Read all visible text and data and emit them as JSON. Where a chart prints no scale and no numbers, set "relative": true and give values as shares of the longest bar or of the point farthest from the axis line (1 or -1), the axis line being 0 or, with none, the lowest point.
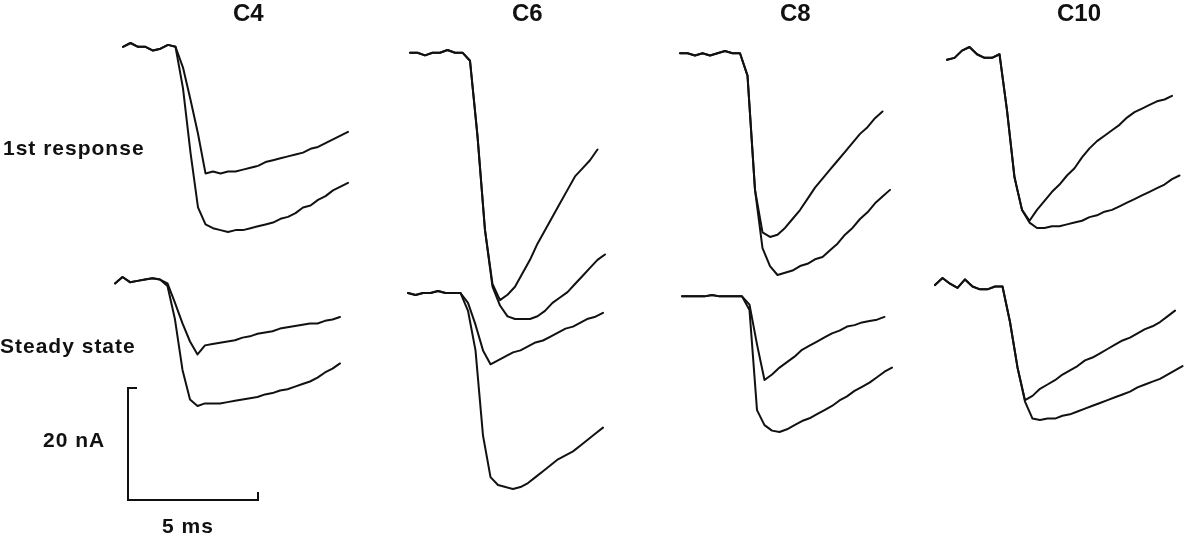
{
  "chart_data": [
    {
      "type": "line",
      "title": "C4",
      "ylabel": "1st response",
      "relative": true,
      "tick_labels": false,
      "categories": [
        null,
        null,
        null,
        null,
        null,
        null,
        null,
        null,
        null,
        null,
        null,
        null,
        null,
        null,
        null,
        null,
        null,
        null,
        null,
        null,
        null,
        null,
        null,
        null,
        null,
        null,
        null,
        null,
        null,
        null,
        null
      ],
      "series": [
        {
          "color": "#111111",
          "values": [
            0.98,
            1.0,
            0.98,
            0.98,
            0.96,
            0.97,
            0.99,
            0.98,
            0.87,
            0.7,
            0.52,
            0.31,
            0.32,
            0.31,
            0.32,
            0.32,
            0.33,
            0.34,
            0.35,
            0.37,
            0.38,
            0.39,
            0.4,
            0.41,
            0.42,
            0.44,
            0.45,
            0.47,
            0.49,
            0.51,
            0.53
          ]
        },
        {
          "color": "#111111",
          "values": [
            0.98,
            1.0,
            0.98,
            0.98,
            0.96,
            0.97,
            0.99,
            0.98,
            0.76,
            0.42,
            0.13,
            0.04,
            0.02,
            0.01,
            0.0,
            0.01,
            0.01,
            0.02,
            0.03,
            0.04,
            0.05,
            0.07,
            0.08,
            0.1,
            0.13,
            0.14,
            0.17,
            0.19,
            0.22,
            0.24,
            0.26
          ]
        }
      ]
    },
    {
      "type": "line",
      "title": "C6",
      "relative": true,
      "tick_labels": false,
      "categories": [
        null,
        null,
        null,
        null,
        null,
        null,
        null,
        null,
        null,
        null,
        null,
        null,
        null,
        null,
        null,
        null,
        null,
        null,
        null,
        null,
        null,
        null,
        null,
        null,
        null,
        null,
        null
      ],
      "series": [
        {
          "color": "#111111",
          "values": [
            0.99,
            0.99,
            0.98,
            0.99,
            0.99,
            1.0,
            0.99,
            0.99,
            0.96,
            0.68,
            0.33,
            0.13,
            0.07,
            0.09,
            0.12,
            0.17,
            0.22,
            0.28,
            0.33,
            0.38,
            0.43,
            0.48,
            0.53,
            0.56,
            0.59,
            0.63,
            null
          ]
        },
        {
          "color": "#111111",
          "values": [
            0.99,
            0.99,
            0.98,
            0.99,
            0.99,
            1.0,
            0.99,
            0.99,
            0.96,
            0.68,
            0.33,
            0.12,
            0.05,
            0.01,
            0.0,
            0.0,
            0.0,
            0.01,
            0.03,
            0.06,
            0.08,
            0.1,
            0.13,
            0.16,
            0.19,
            0.22,
            0.24
          ]
        }
      ]
    },
    {
      "type": "line",
      "title": "C8",
      "relative": true,
      "tick_labels": false,
      "categories": [
        null,
        null,
        null,
        null,
        null,
        null,
        null,
        null,
        null,
        null,
        null,
        null,
        null,
        null,
        null,
        null,
        null,
        null,
        null,
        null,
        null,
        null,
        null,
        null,
        null,
        null,
        null,
        null,
        null
      ],
      "series": [
        {
          "color": "#111111",
          "values": [
            0.99,
            0.99,
            0.98,
            0.99,
            0.98,
            0.99,
            1.0,
            0.99,
            0.99,
            0.89,
            0.38,
            0.19,
            0.17,
            0.18,
            0.21,
            0.25,
            0.29,
            0.34,
            0.39,
            0.43,
            0.47,
            0.51,
            0.55,
            0.59,
            0.63,
            0.66,
            0.7,
            0.73,
            null
          ]
        },
        {
          "color": "#111111",
          "values": [
            0.99,
            0.99,
            0.98,
            0.99,
            0.98,
            0.99,
            1.0,
            0.99,
            0.99,
            0.89,
            0.38,
            0.12,
            0.04,
            0.0,
            0.01,
            0.02,
            0.04,
            0.05,
            0.07,
            0.08,
            0.11,
            0.14,
            0.18,
            0.21,
            0.25,
            0.28,
            0.32,
            0.35,
            0.38
          ]
        }
      ]
    },
    {
      "type": "line",
      "title": "C10",
      "relative": true,
      "tick_labels": false,
      "categories": [
        null,
        null,
        null,
        null,
        null,
        null,
        null,
        null,
        null,
        null,
        null,
        null,
        null,
        null,
        null,
        null,
        null,
        null,
        null,
        null,
        null,
        null,
        null,
        null,
        null,
        null,
        null,
        null,
        null,
        null,
        null,
        null
      ],
      "series": [
        {
          "color": "#111111",
          "values": [
            0.93,
            0.94,
            0.98,
            1.0,
            0.96,
            0.94,
            0.94,
            0.96,
            0.65,
            0.28,
            0.1,
            0.04,
            0.1,
            0.15,
            0.2,
            0.24,
            0.29,
            0.33,
            0.39,
            0.44,
            0.48,
            0.51,
            0.54,
            0.57,
            0.61,
            0.64,
            0.66,
            0.68,
            0.7,
            0.71,
            0.73,
            null
          ]
        },
        {
          "color": "#111111",
          "values": [
            0.93,
            0.94,
            0.98,
            1.0,
            0.96,
            0.94,
            0.94,
            0.96,
            0.65,
            0.28,
            0.1,
            0.03,
            0.0,
            0.0,
            0.01,
            0.01,
            0.02,
            0.03,
            0.04,
            0.06,
            0.07,
            0.09,
            0.1,
            0.12,
            0.14,
            0.16,
            0.18,
            0.2,
            0.22,
            0.24,
            0.27,
            0.29
          ]
        }
      ]
    },
    {
      "type": "line",
      "ylabel": "Steady state",
      "relative": true,
      "tick_labels": false,
      "annotations": [
        "20 nA",
        "5 ms"
      ],
      "categories": [
        null,
        null,
        null,
        null,
        null,
        null,
        null,
        null,
        null,
        null,
        null,
        null,
        null,
        null,
        null,
        null,
        null,
        null,
        null,
        null,
        null,
        null,
        null,
        null,
        null,
        null,
        null,
        null,
        null,
        null,
        null
      ],
      "series": [
        {
          "color": "#111111",
          "values": [
            0.95,
            1.0,
            0.96,
            0.97,
            0.98,
            0.99,
            0.98,
            0.95,
            0.8,
            0.64,
            0.5,
            0.4,
            0.47,
            0.48,
            0.49,
            0.5,
            0.51,
            0.53,
            0.54,
            0.56,
            0.57,
            0.58,
            0.6,
            0.61,
            0.62,
            0.63,
            0.64,
            0.64,
            0.66,
            0.67,
            0.69
          ]
        },
        {
          "color": "#111111",
          "values": [
            0.95,
            1.0,
            0.96,
            0.97,
            0.98,
            0.99,
            0.98,
            0.93,
            0.67,
            0.28,
            0.05,
            0.0,
            0.02,
            0.02,
            0.02,
            0.03,
            0.04,
            0.05,
            0.06,
            0.07,
            0.09,
            0.1,
            0.12,
            0.13,
            0.15,
            0.17,
            0.19,
            0.22,
            0.26,
            0.29,
            0.33
          ]
        }
      ]
    },
    {
      "type": "line",
      "relative": true,
      "tick_labels": false,
      "categories": [
        null,
        null,
        null,
        null,
        null,
        null,
        null,
        null,
        null,
        null,
        null,
        null,
        null,
        null,
        null,
        null,
        null,
        null,
        null,
        null,
        null,
        null,
        null,
        null,
        null,
        null,
        null
      ],
      "series": [
        {
          "color": "#111111",
          "values": [
            0.99,
            0.98,
            0.99,
            0.99,
            1.0,
            0.99,
            0.99,
            0.99,
            0.94,
            0.83,
            0.7,
            0.63,
            0.65,
            0.67,
            0.69,
            0.7,
            0.72,
            0.74,
            0.75,
            0.77,
            0.79,
            0.81,
            0.82,
            0.84,
            0.86,
            0.87,
            0.89
          ]
        },
        {
          "color": "#111111",
          "values": [
            0.99,
            0.98,
            0.99,
            0.99,
            1.0,
            0.99,
            0.99,
            0.99,
            0.9,
            0.7,
            0.27,
            0.06,
            0.02,
            0.01,
            0.0,
            0.01,
            0.03,
            0.06,
            0.09,
            0.12,
            0.15,
            0.17,
            0.19,
            0.22,
            0.25,
            0.28,
            0.31
          ]
        }
      ]
    },
    {
      "type": "line",
      "relative": true,
      "tick_labels": false,
      "categories": [
        null,
        null,
        null,
        null,
        null,
        null,
        null,
        null,
        null,
        null,
        null,
        null,
        null,
        null,
        null,
        null,
        null,
        null,
        null,
        null,
        null,
        null,
        null,
        null,
        null,
        null,
        null,
        null,
        null
      ],
      "series": [
        {
          "color": "#111111",
          "values": [
            0.99,
            0.99,
            0.99,
            0.99,
            1.0,
            0.99,
            0.99,
            0.99,
            0.99,
            0.93,
            0.64,
            0.38,
            0.42,
            0.47,
            0.51,
            0.55,
            0.6,
            0.63,
            0.66,
            0.69,
            0.72,
            0.74,
            0.77,
            0.78,
            0.8,
            0.81,
            0.82,
            0.84,
            null
          ]
        },
        {
          "color": "#111111",
          "values": [
            0.99,
            0.99,
            0.99,
            0.99,
            1.0,
            0.99,
            0.99,
            0.99,
            0.99,
            0.89,
            0.16,
            0.05,
            0.01,
            0.0,
            0.02,
            0.05,
            0.08,
            0.1,
            0.13,
            0.16,
            0.19,
            0.23,
            0.26,
            0.3,
            0.33,
            0.36,
            0.4,
            0.44,
            0.47
          ]
        }
      ]
    },
    {
      "type": "line",
      "relative": true,
      "tick_labels": false,
      "categories": [
        null,
        null,
        null,
        null,
        null,
        null,
        null,
        null,
        null,
        null,
        null,
        null,
        null,
        null,
        null,
        null,
        null,
        null,
        null,
        null,
        null,
        null,
        null,
        null,
        null,
        null,
        null,
        null,
        null,
        null,
        null,
        null,
        null,
        null
      ],
      "series": [
        {
          "color": "#111111",
          "values": [
            0.95,
            1.0,
            0.96,
            0.93,
            0.99,
            0.94,
            0.92,
            0.92,
            0.94,
            0.94,
            0.69,
            0.37,
            0.14,
            0.17,
            0.22,
            0.25,
            0.28,
            0.32,
            0.35,
            0.38,
            0.42,
            0.44,
            0.47,
            0.5,
            0.53,
            0.56,
            0.58,
            0.61,
            0.64,
            0.66,
            0.69,
            0.73,
            0.77,
            null
          ]
        },
        {
          "color": "#111111",
          "values": [
            0.95,
            1.0,
            0.96,
            0.93,
            0.99,
            0.94,
            0.92,
            0.92,
            0.94,
            0.94,
            0.69,
            0.37,
            0.13,
            0.01,
            0.0,
            0.01,
            0.01,
            0.03,
            0.04,
            0.06,
            0.08,
            0.1,
            0.12,
            0.14,
            0.16,
            0.18,
            0.2,
            0.23,
            0.25,
            0.27,
            0.29,
            0.32,
            0.35,
            0.38
          ]
        }
      ]
    }
  ]
}
